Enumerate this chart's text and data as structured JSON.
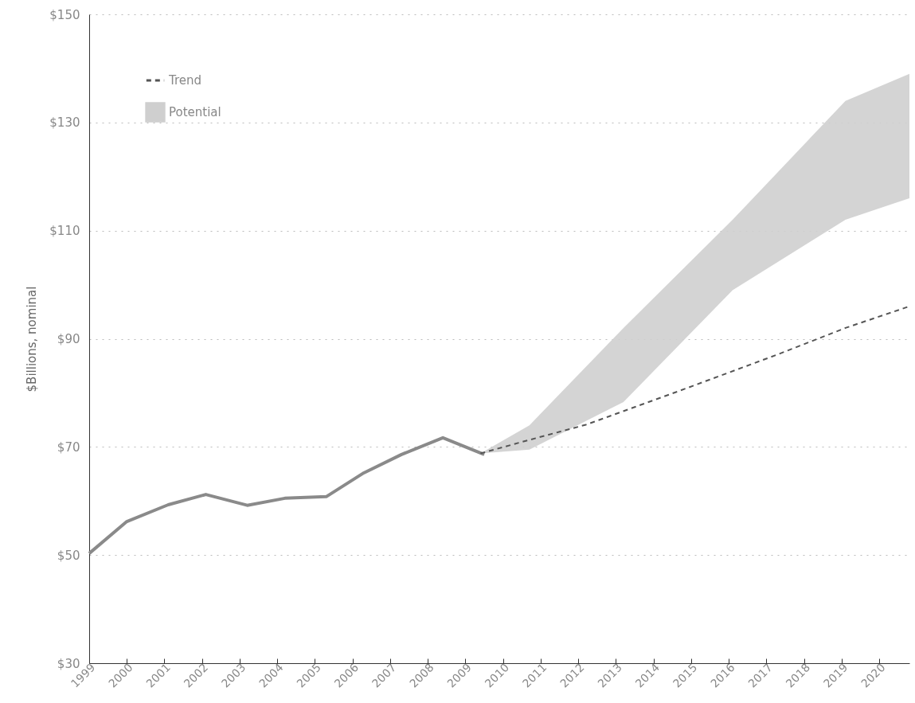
{
  "chart_data": {
    "type": "line",
    "ylabel": "$Billions, nominal",
    "xlim": [
      1999,
      2020.8
    ],
    "xticks": [
      1999,
      2000,
      2001,
      2002,
      2003,
      2004,
      2005,
      2006,
      2007,
      2008,
      2009,
      2010,
      2011,
      2012,
      2013,
      2014,
      2015,
      2016,
      2017,
      2018,
      2019,
      2020
    ],
    "ylim": [
      30,
      150
    ],
    "yticks": [
      {
        "value": 30,
        "label": "$30"
      },
      {
        "value": 50,
        "label": "$50"
      },
      {
        "value": 70,
        "label": "$70"
      },
      {
        "value": 90,
        "label": "$90"
      },
      {
        "value": 110,
        "label": "$110"
      },
      {
        "value": 130,
        "label": "$130"
      },
      {
        "value": 150,
        "label": "$150"
      }
    ],
    "grid": "y",
    "legend": "top left",
    "marker": "none",
    "series": [
      {
        "type": "line",
        "color": "#8a8a8a",
        "line_style": "solid",
        "x": [
          1999,
          2000,
          2001.1,
          2002.1,
          2003.2,
          2004.2,
          2005.3,
          2006.3,
          2007.3,
          2008.4,
          2009.5
        ],
        "values": [
          50.3,
          56.2,
          59.3,
          61.2,
          59.2,
          60.5,
          60.8,
          65.2,
          68.6,
          71.7,
          68.6
        ]
      },
      {
        "name": "Trend",
        "type": "line",
        "color": "#555555",
        "line_style": "dashed",
        "x": [
          2009.4,
          2010.7,
          2012.2,
          2014.7,
          2017.3,
          2019.1,
          2020.8
        ],
        "values": [
          68.8,
          71.3,
          74.1,
          80.4,
          87.1,
          92,
          96
        ]
      },
      {
        "name": "Potential",
        "type": "area",
        "color": "#cfcfcf",
        "x": [
          2009.4,
          2010.7,
          2013.2,
          2016.1,
          2019.1,
          2020.8
        ],
        "values": [
          null,
          null,
          null,
          null,
          null,
          null
        ],
        "lower": [
          68.8,
          69.5,
          78.3,
          99,
          112,
          116
        ],
        "upper": [
          68.8,
          74,
          92,
          112,
          134,
          139
        ]
      }
    ]
  }
}
